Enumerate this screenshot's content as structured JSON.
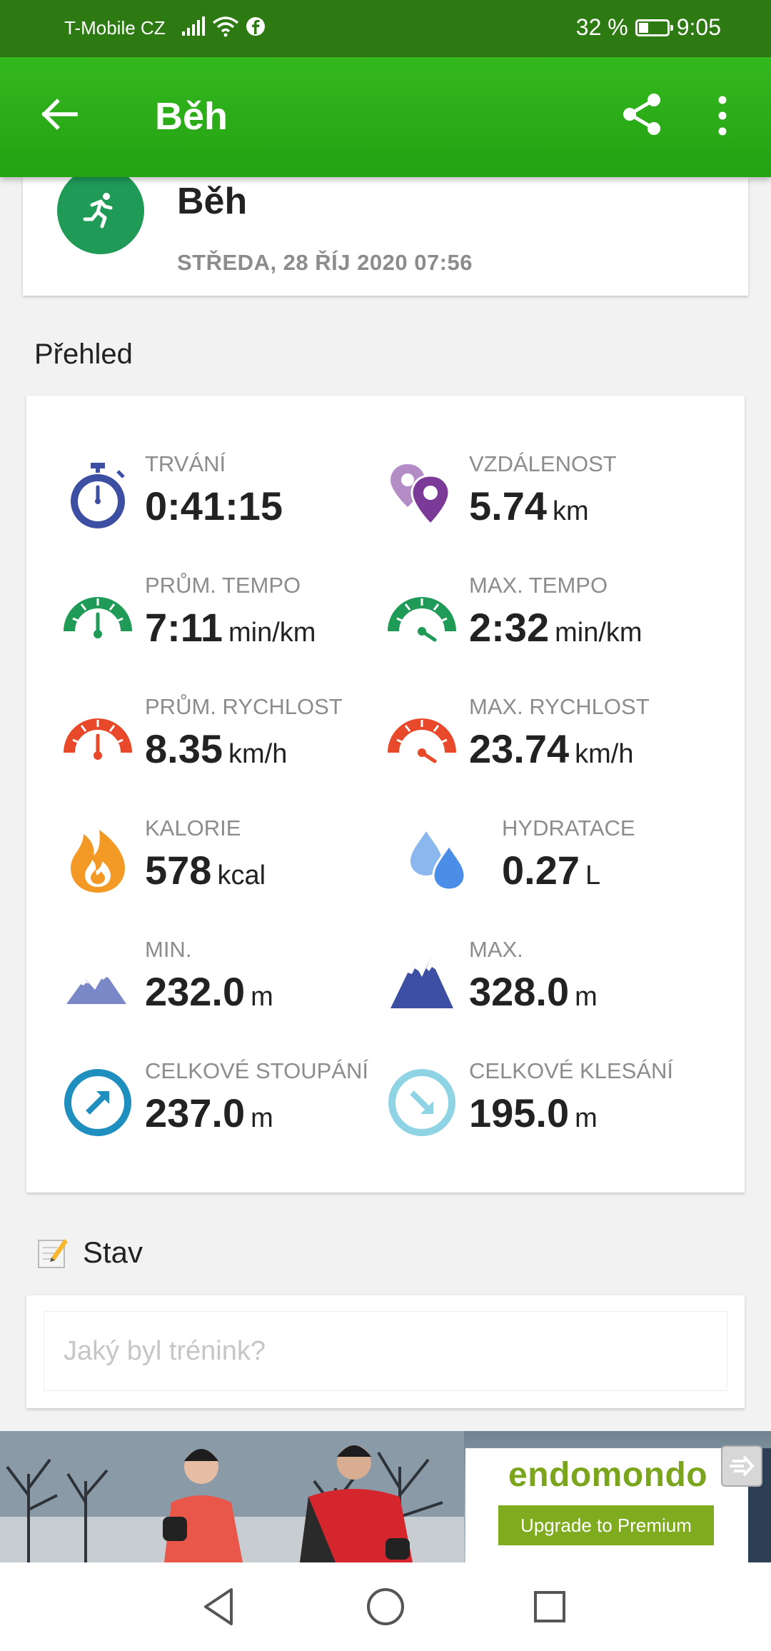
{
  "status_bar": {
    "carrier": "T-Mobile CZ",
    "battery": "32 %",
    "battery_level": 0.32,
    "time": "9:05"
  },
  "app_bar": {
    "title": "Běh",
    "back_icon": "arrow-left-icon",
    "share_icon": "share-icon",
    "more_icon": "more-vertical-icon"
  },
  "activity": {
    "icon": "running-icon",
    "name": "Běh",
    "date": "STŘEDA, 28 ŘÍJ 2020 07:56"
  },
  "overview": {
    "title": "Přehled",
    "stats": [
      {
        "name": "duration",
        "label": "TRVÁNÍ",
        "value": "0:41:15",
        "unit": "",
        "icon": "stopwatch-icon"
      },
      {
        "name": "distance",
        "label": "VZDÁLENOST",
        "value": "5.74",
        "unit": "km",
        "icon": "map-pin-icon"
      },
      {
        "name": "avg-pace",
        "label": "PRŮM. TEMPO",
        "value": "7:11",
        "unit": "min/km",
        "icon": "speedometer-icon"
      },
      {
        "name": "max-pace",
        "label": "MAX. TEMPO",
        "value": "2:32",
        "unit": "min/km",
        "icon": "speedometer-icon"
      },
      {
        "name": "avg-speed",
        "label": "PRŮM. RYCHLOST",
        "value": "8.35",
        "unit": "km/h",
        "icon": "speedometer-icon"
      },
      {
        "name": "max-speed",
        "label": "MAX. RYCHLOST",
        "value": "23.74",
        "unit": "km/h",
        "icon": "speedometer-icon"
      },
      {
        "name": "calories",
        "label": "KALORIE",
        "value": "578",
        "unit": "kcal",
        "icon": "flame-icon"
      },
      {
        "name": "hydration",
        "label": "HYDRATACE",
        "value": "0.27",
        "unit": "L",
        "icon": "water-drops-icon"
      },
      {
        "name": "min-altitude",
        "label": "MIN.",
        "value": "232.0",
        "unit": "m",
        "icon": "mountain-icon"
      },
      {
        "name": "max-altitude",
        "label": "MAX.",
        "value": "328.0",
        "unit": "m",
        "icon": "mountain-peak-icon"
      },
      {
        "name": "total-ascent",
        "label": "CELKOVÉ STOUPÁNÍ",
        "value": "237.0",
        "unit": "m",
        "icon": "arrow-up-right-icon"
      },
      {
        "name": "total-descent",
        "label": "CELKOVÉ KLESÁNÍ",
        "value": "195.0",
        "unit": "m",
        "icon": "arrow-down-right-icon"
      }
    ]
  },
  "status_section": {
    "title": "Stav",
    "icon": "notepad-icon",
    "placeholder": "Jaký byl trénink?"
  },
  "ad": {
    "brand": "endomondo",
    "cta": "Upgrade to Premium",
    "close_icon": "close-ad-icon"
  },
  "nav_bar": {
    "back_icon": "nav-back-icon",
    "home_icon": "nav-home-icon",
    "recents_icon": "nav-recents-icon"
  },
  "colors": {
    "status_bar": "#2e7a12",
    "app_bar": "#2aad17",
    "activity_icon": "#1f9a57",
    "blue": "#3d4fa3",
    "purple": "#7b3a98",
    "green": "#1f9a57",
    "orange_red": "#e8492a",
    "orange": "#f39a26",
    "water": "#4a8ee8",
    "teal": "#1e8fbe",
    "light_teal": "#8fd4e4",
    "ad_green": "#7fab1e"
  }
}
